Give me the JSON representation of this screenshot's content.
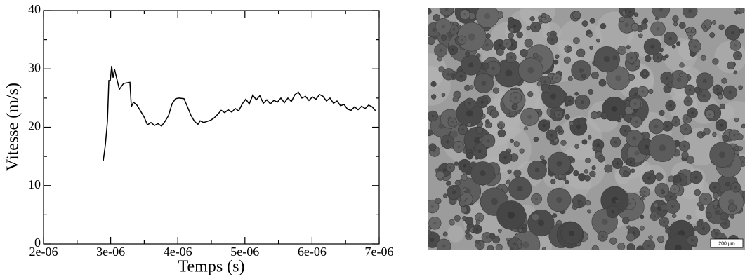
{
  "chart_data": {
    "type": "line",
    "xlabel": "Temps (s)",
    "ylabel": "Vitesse (m/s)",
    "x": [
      2.889e-06,
      2.921e-06,
      2.952e-06,
      2.973e-06,
      2.994e-06,
      3.015e-06,
      3.036e-06,
      3.057e-06,
      3.077e-06,
      3.098e-06,
      3.13e-06,
      3.161e-06,
      3.192e-06,
      3.287e-06,
      3.308e-06,
      3.339e-06,
      3.391e-06,
      3.444e-06,
      3.496e-06,
      3.548e-06,
      3.6e-06,
      3.653e-06,
      3.705e-06,
      3.757e-06,
      3.81e-06,
      3.862e-06,
      3.914e-06,
      3.967e-06,
      4.019e-06,
      4.092e-06,
      4.144e-06,
      4.197e-06,
      4.249e-06,
      4.301e-06,
      4.333e-06,
      4.385e-06,
      4.437e-06,
      4.49e-06,
      4.542e-06,
      4.594e-06,
      4.646e-06,
      4.699e-06,
      4.751e-06,
      4.803e-06,
      4.856e-06,
      4.908e-06,
      4.96e-06,
      5.013e-06,
      5.065e-06,
      5.117e-06,
      5.169e-06,
      5.222e-06,
      5.274e-06,
      5.326e-06,
      5.379e-06,
      5.431e-06,
      5.483e-06,
      5.536e-06,
      5.588e-06,
      5.64e-06,
      5.692e-06,
      5.745e-06,
      5.797e-06,
      5.849e-06,
      5.902e-06,
      5.954e-06,
      6.006e-06,
      6.059e-06,
      6.111e-06,
      6.163e-06,
      6.215e-06,
      6.268e-06,
      6.32e-06,
      6.372e-06,
      6.424e-06,
      6.477e-06,
      6.529e-06,
      6.582e-06,
      6.634e-06,
      6.686e-06,
      6.738e-06,
      6.791e-06,
      6.843e-06,
      6.895e-06,
      6.948e-06
    ],
    "values": [
      14.2,
      17,
      21,
      28,
      28,
      30.5,
      28.5,
      30,
      29,
      28,
      26.5,
      27,
      27.5,
      27.7,
      23.5,
      24.3,
      23.8,
      22.8,
      21.8,
      20.4,
      20.8,
      20.3,
      20.6,
      20.2,
      21,
      22,
      24,
      24.9,
      25,
      24.9,
      23.5,
      22,
      21,
      20.5,
      21.1,
      20.8,
      21,
      21.2,
      21.6,
      22.2,
      22.9,
      22.5,
      23,
      22.6,
      23.2,
      22.8,
      24,
      24.8,
      24,
      25.5,
      24.7,
      25.4,
      24.1,
      24.7,
      24,
      24.6,
      24.3,
      25,
      24.2,
      25,
      24.4,
      25.6,
      26,
      25,
      25.3,
      24.6,
      25.2,
      24.8,
      25.6,
      25.3,
      24.5,
      25,
      24.1,
      24.5,
      23.7,
      23.9,
      23.1,
      22.9,
      23.5,
      23,
      23.6,
      23.2,
      23.8,
      23.5,
      22.8
    ],
    "color": "#000000",
    "xlim": [
      2e-06,
      7e-06
    ],
    "xticks": [
      {
        "value": 2e-06,
        "label": "2e-06"
      },
      {
        "value": 3e-06,
        "label": "3e-06"
      },
      {
        "value": 4e-06,
        "label": "4e-06"
      },
      {
        "value": 5e-06,
        "label": "5e-06"
      },
      {
        "value": 6e-06,
        "label": "6e-06"
      },
      {
        "value": 7e-06,
        "label": "7e-06"
      }
    ],
    "xminorticks": [
      2.5e-06,
      3.5e-06,
      4.5e-06,
      5.5e-06,
      6.5e-06
    ],
    "ylim": [
      0,
      40
    ],
    "yticks": [
      0,
      10,
      20,
      30,
      40
    ],
    "yminorticks": [
      5,
      15,
      25,
      35
    ]
  },
  "image": {
    "scale_bar": "200 µm"
  }
}
